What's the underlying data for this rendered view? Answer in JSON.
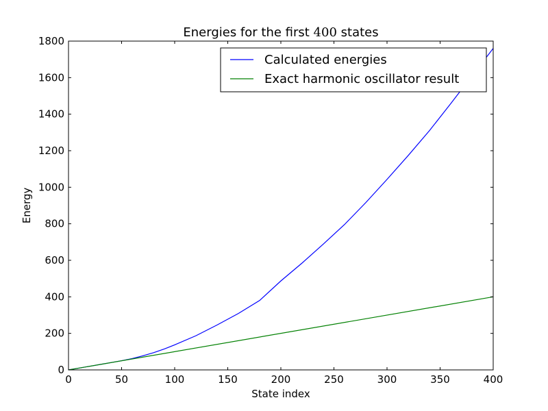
{
  "chart_data": {
    "type": "line",
    "title_prefix": "Energies for the first ",
    "title_math": "400",
    "title_suffix": " states",
    "xlabel": "State index",
    "ylabel": "Energy",
    "xlim": [
      0,
      400
    ],
    "ylim": [
      0,
      1800
    ],
    "xticks": [
      "0",
      "50",
      "100",
      "150",
      "200",
      "250",
      "300",
      "350",
      "400"
    ],
    "yticks": [
      "0",
      "200",
      "400",
      "600",
      "800",
      "1000",
      "1200",
      "1400",
      "1600",
      "1800"
    ],
    "grid": false,
    "legend_position": "upper right",
    "series": [
      {
        "name": "Calculated energies",
        "color": "#0000ff",
        "x": [
          0,
          10,
          20,
          30,
          40,
          50,
          60,
          70,
          80,
          90,
          100,
          120,
          140,
          160,
          180,
          200,
          220,
          240,
          260,
          280,
          300,
          320,
          340,
          360,
          380,
          400
        ],
        "y": [
          0,
          10,
          20,
          30,
          40,
          50.5,
          62,
          77,
          94,
          114,
          137,
          187,
          246,
          309,
          380,
          487,
          585,
          689,
          796,
          916,
          1043,
          1174,
          1310,
          1458,
          1609,
          1760
        ]
      },
      {
        "name": "Exact harmonic oscillator result",
        "color": "#008000",
        "x": [
          0,
          400
        ],
        "y": [
          0,
          400
        ]
      }
    ]
  }
}
